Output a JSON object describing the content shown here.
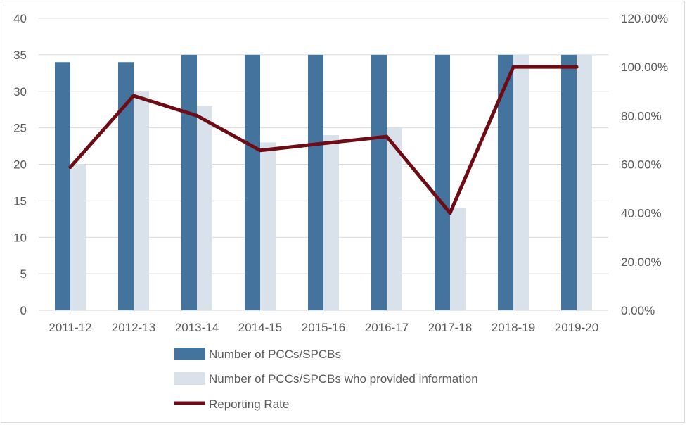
{
  "chart_data": {
    "type": "bar",
    "categories": [
      "2011-12",
      "2012-13",
      "2013-14",
      "2014-15",
      "2015-16",
      "2016-17",
      "2017-18",
      "2018-19",
      "2019-20"
    ],
    "series": [
      {
        "name": "Number of PCCs/SPCBs",
        "type": "bar",
        "axis": "left",
        "color": "#44749d",
        "values": [
          34,
          34,
          35,
          35,
          35,
          35,
          35,
          35,
          35
        ]
      },
      {
        "name": "Number of PCCs/SPCBs who provided information",
        "type": "bar",
        "axis": "left",
        "color": "#d9e1ea",
        "values": [
          20,
          30,
          28,
          23,
          24,
          25,
          14,
          35,
          35
        ]
      },
      {
        "name": "Reporting Rate",
        "type": "line",
        "axis": "right",
        "color": "#6e0c16",
        "values": [
          0.588,
          0.882,
          0.8,
          0.657,
          0.686,
          0.714,
          0.4,
          1.0,
          1.0
        ]
      }
    ],
    "y_left": {
      "ylim": [
        0,
        40
      ],
      "ticks": [
        "0",
        "5",
        "10",
        "15",
        "20",
        "25",
        "30",
        "35",
        "40"
      ]
    },
    "y_right": {
      "ylim": [
        0,
        1.2
      ],
      "ticks": [
        "0.00%",
        "20.00%",
        "40.00%",
        "60.00%",
        "80.00%",
        "100.00%",
        "120.00%"
      ]
    },
    "grid": true,
    "legend_position": "bottom"
  }
}
